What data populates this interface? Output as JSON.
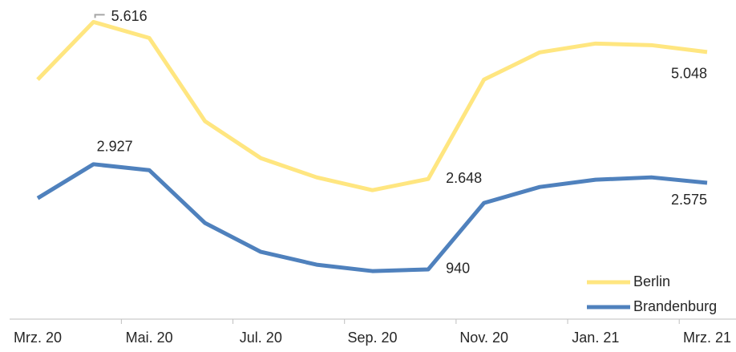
{
  "chart_data": {
    "type": "line",
    "categories": [
      "Mrz. 20",
      null,
      "Mai. 20",
      null,
      "Jul. 20",
      null,
      "Sep. 20",
      null,
      "Nov. 20",
      null,
      "Jan. 21",
      null,
      "Mrz. 21"
    ],
    "ylim": [
      0,
      6000
    ],
    "legend": "bottom-right",
    "series": [
      {
        "name": "Berlin",
        "color": "#ffe680",
        "values": [
          4526,
          5616,
          5313,
          3739,
          3042,
          2679,
          2437,
          2648,
          4526,
          5041,
          5207,
          5177,
          5048
        ],
        "value_labels": [
          null,
          "5.616",
          null,
          null,
          null,
          null,
          null,
          "2.648",
          null,
          null,
          null,
          null,
          "5.048"
        ]
      },
      {
        "name": "Brandenburg",
        "color": "#4f81bd",
        "values": [
          2285,
          2927,
          2815,
          1816,
          1271,
          1029,
          908,
          940,
          2195,
          2497,
          2634,
          2679,
          2575
        ],
        "value_labels": [
          null,
          "2.927",
          null,
          null,
          null,
          null,
          null,
          "940",
          null,
          null,
          null,
          null,
          "2.575"
        ]
      }
    ]
  }
}
